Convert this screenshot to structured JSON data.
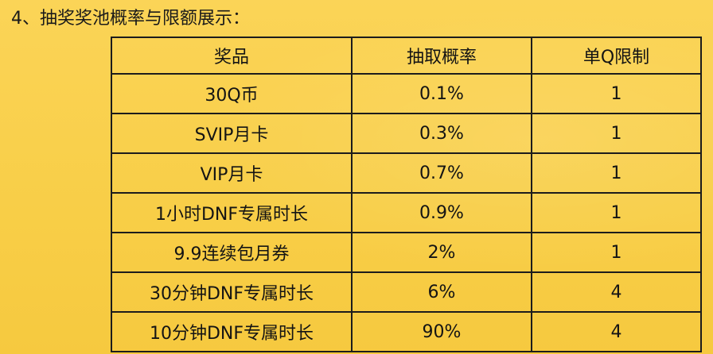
{
  "heading": "4、抽奖奖池概率与限额展示：",
  "table": {
    "headers": {
      "prize": "奖品",
      "probability": "抽取概率",
      "limit": "单Q限制"
    },
    "rows": [
      {
        "prize": "30Q币",
        "probability": "0.1%",
        "limit": "1"
      },
      {
        "prize": "SVIP月卡",
        "probability": "0.3%",
        "limit": "1"
      },
      {
        "prize": "VIP月卡",
        "probability": "0.7%",
        "limit": "1"
      },
      {
        "prize": "1小时DNF专属时长",
        "probability": "0.9%",
        "limit": "1"
      },
      {
        "prize": "9.9连续包月券",
        "probability": "2%",
        "limit": "1"
      },
      {
        "prize": "30分钟DNF专属时长",
        "probability": "6%",
        "limit": "4"
      },
      {
        "prize": "10分钟DNF专属时长",
        "probability": "90%",
        "limit": "4"
      }
    ]
  },
  "colors": {
    "background": "#f8ce47",
    "border": "#1c1c1c",
    "text": "#141414"
  }
}
